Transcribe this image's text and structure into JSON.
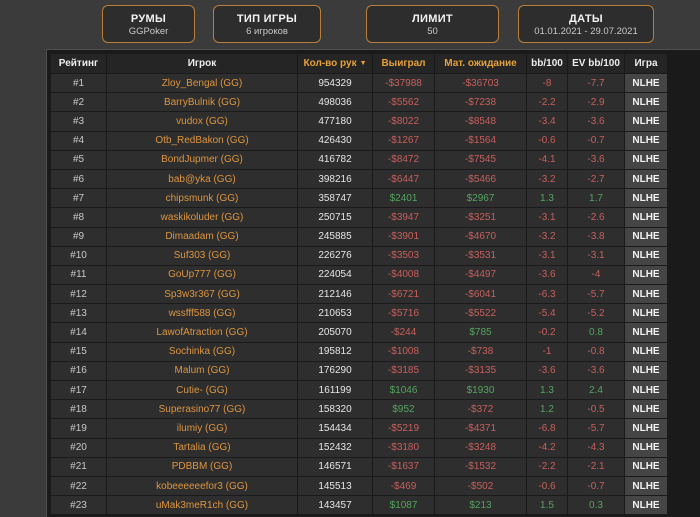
{
  "filters": [
    {
      "label": "РУМЫ",
      "value": "GGPoker"
    },
    {
      "label": "ТИП ИГРЫ",
      "value": "6 игроков"
    },
    {
      "label": "ЛИМИТ",
      "value": "50"
    },
    {
      "label": "ДАТЫ",
      "value": "01.01.2021 - 29.07.2021"
    }
  ],
  "table": {
    "sort_icon": "▼",
    "columns": [
      {
        "key": "rank",
        "label": "Рейтинг",
        "accent": false,
        "sorted": false
      },
      {
        "key": "player",
        "label": "Игрок",
        "accent": false,
        "sorted": false
      },
      {
        "key": "hands",
        "label": "Кол-во рук",
        "accent": true,
        "sorted": true
      },
      {
        "key": "won",
        "label": "Выиграл",
        "accent": true,
        "sorted": false
      },
      {
        "key": "ev_won",
        "label": "Мат. ожидание",
        "accent": true,
        "sorted": false
      },
      {
        "key": "bb100",
        "label": "bb/100",
        "accent": false,
        "sorted": false
      },
      {
        "key": "ev_bb100",
        "label": "EV bb/100",
        "accent": false,
        "sorted": false
      },
      {
        "key": "game",
        "label": "Игра",
        "accent": false,
        "sorted": false
      }
    ],
    "rows": [
      {
        "rank": "#1",
        "player": "Zloy_Bengal (GG)",
        "hands": "954329",
        "won": "-$37988",
        "ev_won": "-$36703",
        "bb100": "-8",
        "ev_bb100": "-7.7",
        "game": "NLHE"
      },
      {
        "rank": "#2",
        "player": "BarryBulnik (GG)",
        "hands": "498036",
        "won": "-$5562",
        "ev_won": "-$7238",
        "bb100": "-2.2",
        "ev_bb100": "-2.9",
        "game": "NLHE"
      },
      {
        "rank": "#3",
        "player": "vudox (GG)",
        "hands": "477180",
        "won": "-$8022",
        "ev_won": "-$8548",
        "bb100": "-3.4",
        "ev_bb100": "-3.6",
        "game": "NLHE"
      },
      {
        "rank": "#4",
        "player": "Otb_RedBakon (GG)",
        "hands": "426430",
        "won": "-$1267",
        "ev_won": "-$1564",
        "bb100": "-0.6",
        "ev_bb100": "-0.7",
        "game": "NLHE"
      },
      {
        "rank": "#5",
        "player": "BondJupmer (GG)",
        "hands": "416782",
        "won": "-$8472",
        "ev_won": "-$7545",
        "bb100": "-4.1",
        "ev_bb100": "-3.6",
        "game": "NLHE"
      },
      {
        "rank": "#6",
        "player": "bab@yka (GG)",
        "hands": "398216",
        "won": "-$6447",
        "ev_won": "-$5466",
        "bb100": "-3.2",
        "ev_bb100": "-2.7",
        "game": "NLHE"
      },
      {
        "rank": "#7",
        "player": "chipsmunk (GG)",
        "hands": "358747",
        "won": "$2401",
        "ev_won": "$2967",
        "bb100": "1.3",
        "ev_bb100": "1.7",
        "game": "NLHE"
      },
      {
        "rank": "#8",
        "player": "waskikoluder (GG)",
        "hands": "250715",
        "won": "-$3947",
        "ev_won": "-$3251",
        "bb100": "-3.1",
        "ev_bb100": "-2.6",
        "game": "NLHE"
      },
      {
        "rank": "#9",
        "player": "Dimaadam (GG)",
        "hands": "245885",
        "won": "-$3901",
        "ev_won": "-$4670",
        "bb100": "-3.2",
        "ev_bb100": "-3.8",
        "game": "NLHE"
      },
      {
        "rank": "#10",
        "player": "Suf303 (GG)",
        "hands": "226276",
        "won": "-$3503",
        "ev_won": "-$3531",
        "bb100": "-3.1",
        "ev_bb100": "-3.1",
        "game": "NLHE"
      },
      {
        "rank": "#11",
        "player": "GoUp777 (GG)",
        "hands": "224054",
        "won": "-$4008",
        "ev_won": "-$4497",
        "bb100": "-3.6",
        "ev_bb100": "-4",
        "game": "NLHE"
      },
      {
        "rank": "#12",
        "player": "Sp3w3r367 (GG)",
        "hands": "212146",
        "won": "-$6721",
        "ev_won": "-$6041",
        "bb100": "-6.3",
        "ev_bb100": "-5.7",
        "game": "NLHE"
      },
      {
        "rank": "#13",
        "player": "wssfff588 (GG)",
        "hands": "210653",
        "won": "-$5716",
        "ev_won": "-$5522",
        "bb100": "-5.4",
        "ev_bb100": "-5.2",
        "game": "NLHE"
      },
      {
        "rank": "#14",
        "player": "LawofAtraction (GG)",
        "hands": "205070",
        "won": "-$244",
        "ev_won": "$785",
        "bb100": "-0.2",
        "ev_bb100": "0.8",
        "game": "NLHE"
      },
      {
        "rank": "#15",
        "player": "Sochinka (GG)",
        "hands": "195812",
        "won": "-$1008",
        "ev_won": "-$738",
        "bb100": "-1",
        "ev_bb100": "-0.8",
        "game": "NLHE"
      },
      {
        "rank": "#16",
        "player": "Malum (GG)",
        "hands": "176290",
        "won": "-$3185",
        "ev_won": "-$3135",
        "bb100": "-3.6",
        "ev_bb100": "-3.6",
        "game": "NLHE"
      },
      {
        "rank": "#17",
        "player": "Cutie- (GG)",
        "hands": "161199",
        "won": "$1046",
        "ev_won": "$1930",
        "bb100": "1.3",
        "ev_bb100": "2.4",
        "game": "NLHE"
      },
      {
        "rank": "#18",
        "player": "Superasino77 (GG)",
        "hands": "158320",
        "won": "$952",
        "ev_won": "-$372",
        "bb100": "1.2",
        "ev_bb100": "-0.5",
        "game": "NLHE"
      },
      {
        "rank": "#19",
        "player": "ilumiy (GG)",
        "hands": "154434",
        "won": "-$5219",
        "ev_won": "-$4371",
        "bb100": "-6.8",
        "ev_bb100": "-5.7",
        "game": "NLHE"
      },
      {
        "rank": "#20",
        "player": "Tartalia (GG)",
        "hands": "152432",
        "won": "-$3180",
        "ev_won": "-$3248",
        "bb100": "-4.2",
        "ev_bb100": "-4.3",
        "game": "NLHE"
      },
      {
        "rank": "#21",
        "player": "PDBBM (GG)",
        "hands": "146571",
        "won": "-$1637",
        "ev_won": "-$1532",
        "bb100": "-2.2",
        "ev_bb100": "-2.1",
        "game": "NLHE"
      },
      {
        "rank": "#22",
        "player": "kobeeeeeefor3 (GG)",
        "hands": "145513",
        "won": "-$469",
        "ev_won": "-$502",
        "bb100": "-0.6",
        "ev_bb100": "-0.7",
        "game": "NLHE"
      },
      {
        "rank": "#23",
        "player": "uMak3meR1ch (GG)",
        "hands": "143457",
        "won": "$1087",
        "ev_won": "$213",
        "bb100": "1.5",
        "ev_bb100": "0.3",
        "game": "NLHE"
      }
    ]
  },
  "colors": {
    "accent_orange": "#e5a13d",
    "player_orange": "#dd9640",
    "negative_red": "#c75f5d",
    "positive_green": "#53a45e",
    "filter_border": "#b97f3a"
  }
}
